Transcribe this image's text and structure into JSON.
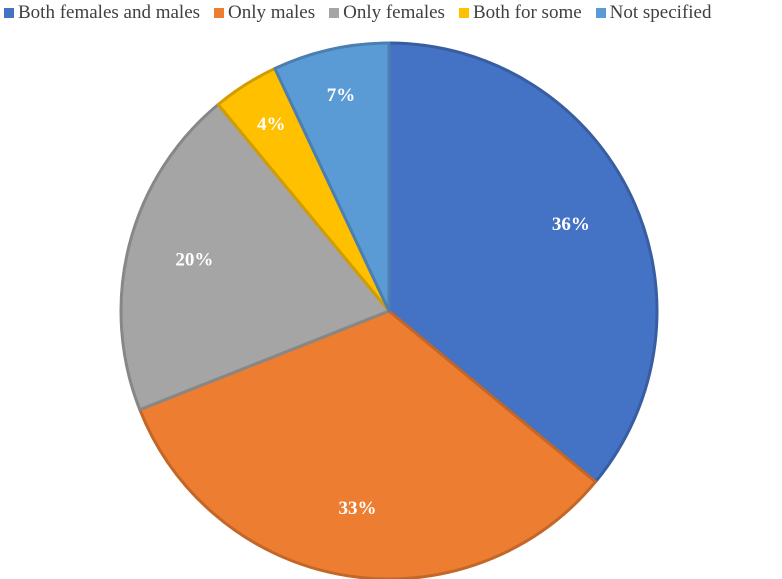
{
  "chart_data": {
    "type": "pie",
    "title": "",
    "legend_position": "top",
    "slices": [
      {
        "name": "Both females and males",
        "value": 36,
        "label": "36%",
        "color": "#4472C4"
      },
      {
        "name": "Only males",
        "value": 33,
        "label": "33%",
        "color": "#ED7D31"
      },
      {
        "name": "Only females",
        "value": 20,
        "label": "20%",
        "color": "#A5A5A5"
      },
      {
        "name": "Both for some",
        "value": 4,
        "label": "4%",
        "color": "#FFC000"
      },
      {
        "name": "Not specified",
        "value": 7,
        "label": "7%",
        "color": "#5B9BD5"
      }
    ]
  }
}
